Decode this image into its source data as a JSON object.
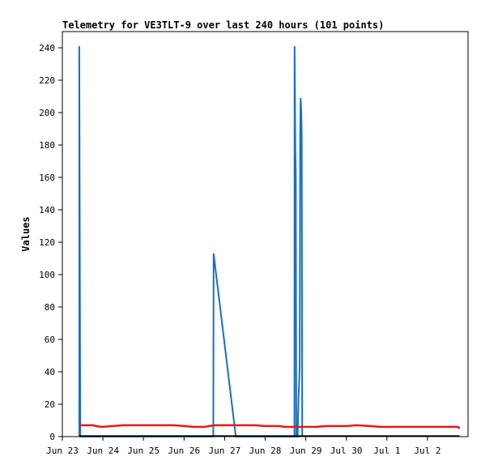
{
  "chart_data": {
    "type": "line",
    "title": "Telemetry for VE3TLT-9 over last 240 hours (101 points)",
    "xlabel": "",
    "ylabel": "Values",
    "ylim": [
      0,
      250
    ],
    "yticks": [
      0,
      20,
      40,
      60,
      80,
      100,
      120,
      140,
      160,
      180,
      200,
      220,
      240
    ],
    "xlim": [
      0,
      240
    ],
    "xticks": [
      {
        "label": "Jun 23",
        "x": 0
      },
      {
        "label": "Jun 24",
        "x": 24
      },
      {
        "label": "Jun 25",
        "x": 48
      },
      {
        "label": "Jun 26",
        "x": 72
      },
      {
        "label": "Jun 27",
        "x": 96
      },
      {
        "label": "Jun 28",
        "x": 120
      },
      {
        "label": "Jun 29",
        "x": 144
      },
      {
        "label": "Jul 30",
        "x": 168
      },
      {
        "label": "Jul 1",
        "x": 192
      },
      {
        "label": "Jul 2",
        "x": 216
      }
    ],
    "grid": false,
    "series": [
      {
        "color": "#1a6fc4",
        "points": [
          [
            10,
            0
          ],
          [
            10,
            241
          ],
          [
            10.3,
            121
          ],
          [
            10.6,
            0
          ],
          [
            89.3,
            0
          ],
          [
            89.5,
            113
          ],
          [
            102.6,
            0
          ],
          [
            137.3,
            0
          ],
          [
            137.4,
            241
          ],
          [
            137.8,
            178
          ],
          [
            138.1,
            161
          ],
          [
            138.4,
            0
          ],
          [
            139.2,
            0
          ],
          [
            139.5,
            15
          ],
          [
            139.8,
            26
          ],
          [
            140.1,
            34
          ],
          [
            140.4,
            44
          ],
          [
            140.7,
            186
          ],
          [
            141.0,
            209
          ],
          [
            141.3,
            201
          ],
          [
            141.6,
            186
          ],
          [
            141.9,
            0
          ]
        ]
      },
      {
        "color": "#e11b1b",
        "points": [
          [
            10,
            7
          ],
          [
            18,
            7
          ],
          [
            20,
            6.5
          ],
          [
            23,
            6
          ],
          [
            30,
            6.5
          ],
          [
            36,
            7
          ],
          [
            50,
            7
          ],
          [
            66,
            7
          ],
          [
            72,
            6.5
          ],
          [
            78,
            6
          ],
          [
            84,
            6
          ],
          [
            90,
            7
          ],
          [
            100,
            7
          ],
          [
            108,
            7
          ],
          [
            114,
            7
          ],
          [
            120,
            6.5
          ],
          [
            128,
            6.5
          ],
          [
            132,
            6
          ],
          [
            138,
            6
          ],
          [
            150,
            6
          ],
          [
            156,
            6.5
          ],
          [
            168,
            6.5
          ],
          [
            174,
            7
          ],
          [
            182,
            6.5
          ],
          [
            188,
            6
          ],
          [
            196,
            6
          ],
          [
            204,
            6
          ],
          [
            214,
            6
          ],
          [
            224,
            6
          ],
          [
            234,
            6
          ],
          [
            235,
            5
          ]
        ]
      },
      {
        "color": "#000000",
        "points": [
          [
            10,
            0.3
          ],
          [
            235,
            0.3
          ]
        ]
      }
    ]
  }
}
